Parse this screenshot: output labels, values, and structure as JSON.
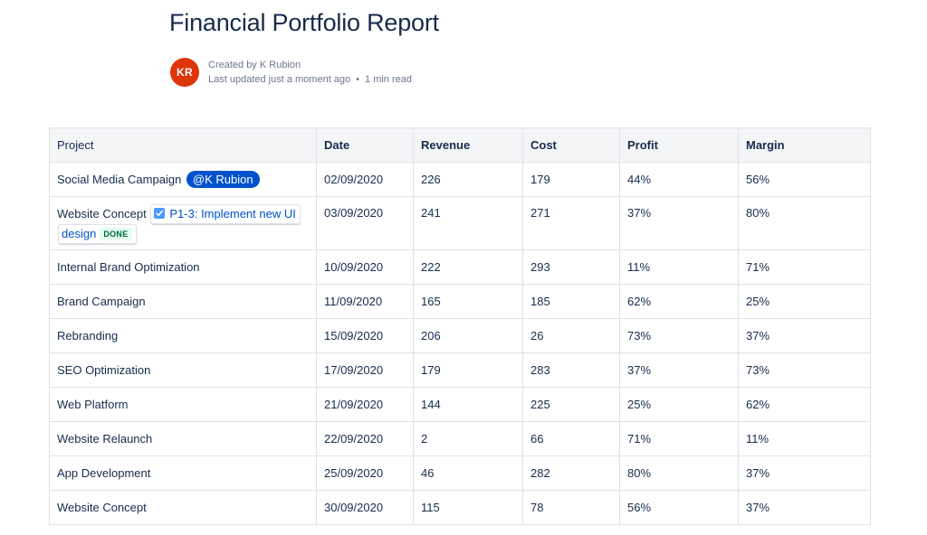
{
  "page": {
    "title": "Financial Portfolio Report",
    "byline": {
      "avatar_initials": "KR",
      "created_by": "Created by K Rubion",
      "last_updated": "Last updated just a moment ago",
      "separator": "•",
      "read_time": "1 min read"
    }
  },
  "table": {
    "headers": [
      "Project",
      "Date",
      "Revenue",
      "Cost",
      "Profit",
      "Margin"
    ],
    "rows": [
      {
        "project": "Social Media Campaign",
        "mention": "@K Rubion",
        "date": "02/09/2020",
        "revenue": "226",
        "cost": "179",
        "profit": "44%",
        "margin": "56%"
      },
      {
        "project": "Website Concept",
        "issue": {
          "key_title": "P1-3: Implement new UI design",
          "status": "DONE"
        },
        "date": "03/09/2020",
        "revenue": "241",
        "cost": "271",
        "profit": "37%",
        "margin": "80%"
      },
      {
        "project": "Internal Brand Optimization",
        "date": "10/09/2020",
        "revenue": "222",
        "cost": "293",
        "profit": "11%",
        "margin": "71%"
      },
      {
        "project": "Brand Campaign",
        "date": "11/09/2020",
        "revenue": "165",
        "cost": "185",
        "profit": "62%",
        "margin": "25%"
      },
      {
        "project": "Rebranding",
        "date": "15/09/2020",
        "revenue": "206",
        "cost": "26",
        "profit": "73%",
        "margin": "37%"
      },
      {
        "project": "SEO Optimization",
        "date": "17/09/2020",
        "revenue": "179",
        "cost": "283",
        "profit": "37%",
        "margin": "73%"
      },
      {
        "project": "Web Platform",
        "date": "21/09/2020",
        "revenue": "144",
        "cost": "225",
        "profit": "25%",
        "margin": "62%"
      },
      {
        "project": "Website Relaunch",
        "date": "22/09/2020",
        "revenue": "2",
        "cost": "66",
        "profit": "71%",
        "margin": "11%"
      },
      {
        "project": "App Development",
        "date": "25/09/2020",
        "revenue": "46",
        "cost": "282",
        "profit": "80%",
        "margin": "37%"
      },
      {
        "project": "Website Concept",
        "date": "30/09/2020",
        "revenue": "115",
        "cost": "78",
        "profit": "56%",
        "margin": "37%"
      }
    ]
  },
  "icons": {
    "issue_type": "checkbox-icon"
  },
  "colors": {
    "avatar_bg": "#de350b",
    "mention_bg": "#0052cc",
    "link": "#0052cc",
    "done_bg": "#e3fcef",
    "done_text": "#006644",
    "header_bg": "#f4f5f7",
    "border": "#dfe1e6",
    "issue_icon_bg": "#4c9aff"
  }
}
